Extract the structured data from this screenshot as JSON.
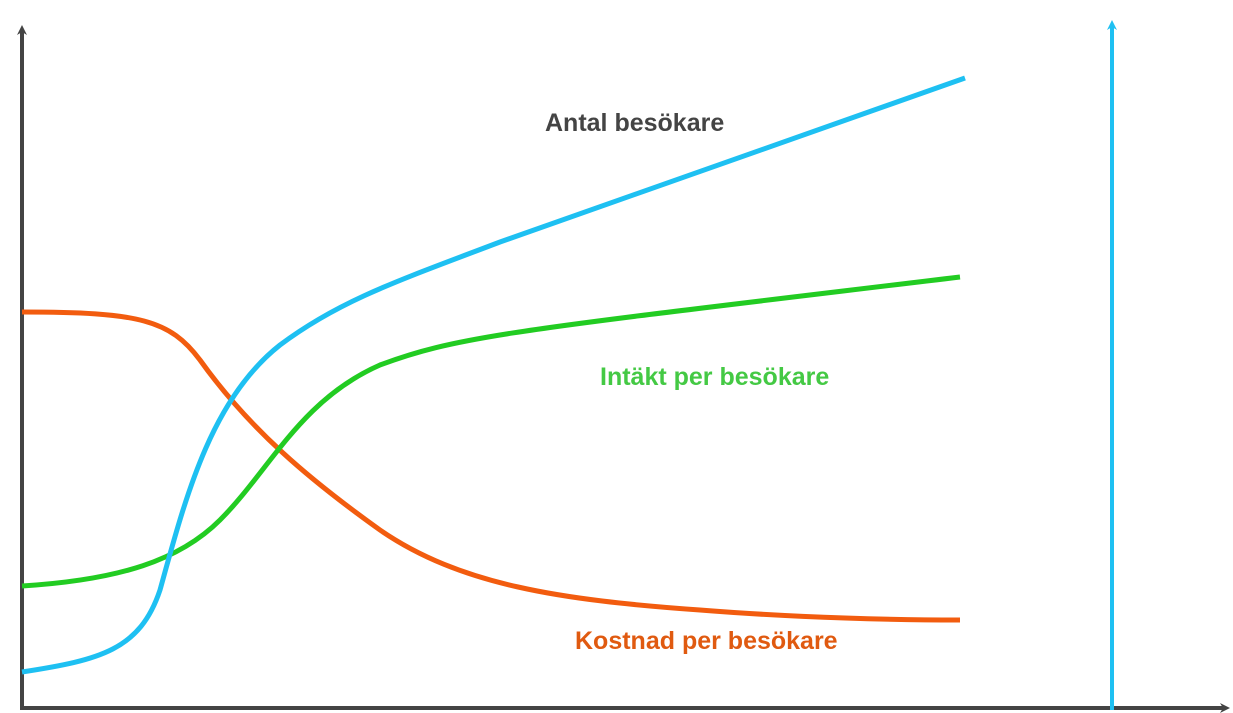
{
  "labels": {
    "visitors": "Antal besökare",
    "revenue": "Intäkt per besökare",
    "cost": "Kostnad per besökare"
  }
}
